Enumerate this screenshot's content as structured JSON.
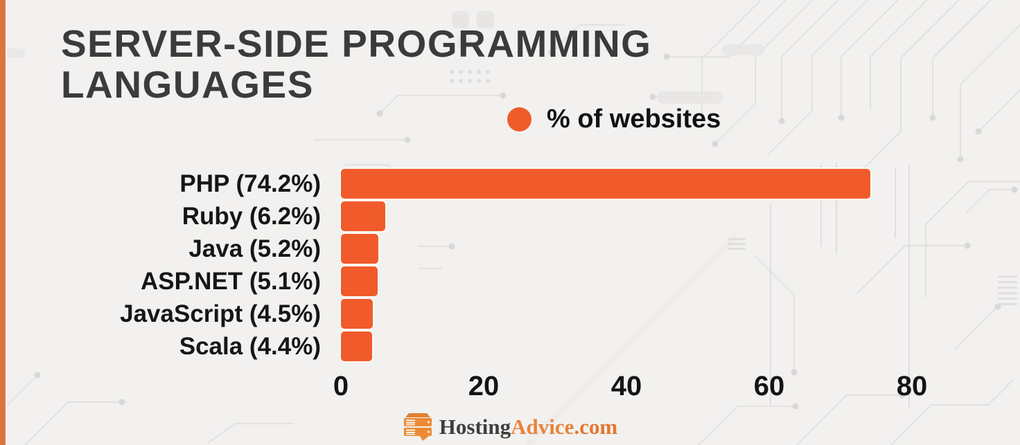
{
  "page": {
    "background": "#F2F1F0",
    "accent_strip_color": "#DC7441"
  },
  "title": {
    "line1": "SERVER-SIDE PROGRAMMING",
    "line2": "LANGUAGES"
  },
  "legend": {
    "label": "% of websites",
    "marker_color": "#F15B2B"
  },
  "chart_data": {
    "type": "bar",
    "orientation": "horizontal",
    "title": "Server-side programming languages",
    "series_name": "% of websites",
    "categories": [
      "PHP",
      "Ruby",
      "Java",
      "ASP.NET",
      "JavaScript",
      "Scala"
    ],
    "values": [
      74.2,
      6.2,
      5.2,
      5.1,
      4.5,
      4.4
    ],
    "bar_labels": [
      "PHP (74.2%)",
      "Ruby (6.2%)",
      "Java (5.2%)",
      "ASP.NET (5.1%)",
      "JavaScript (4.5%)",
      "Scala (4.4%)"
    ],
    "xlim": [
      0,
      80
    ],
    "x_ticks": [
      "0",
      "20",
      "40",
      "60",
      "80"
    ],
    "bar_color": "#F15B2B",
    "grid": false,
    "legend_position": "top-center"
  },
  "footer": {
    "brand_dark": "Hosting",
    "brand_orange": "Advice",
    "brand_suffix": ".com"
  }
}
